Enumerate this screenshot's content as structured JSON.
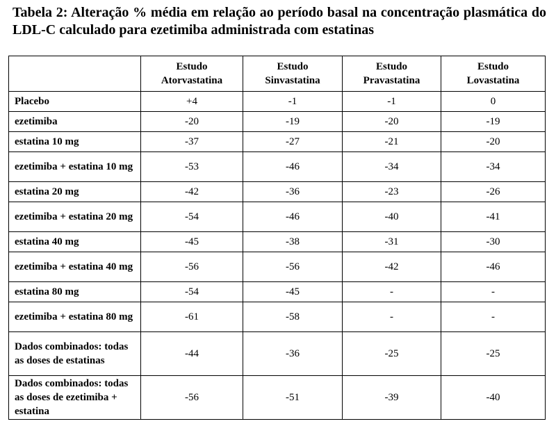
{
  "caption": "Tabela 2: Alteração % média em relação ao período basal na concentração plasmática do LDL-C calculado para ezetimiba administrada com estatinas",
  "columns": [
    {
      "line1": "Estudo",
      "line2": "Atorvastatina"
    },
    {
      "line1": "Estudo",
      "line2": "Sinvastatina"
    },
    {
      "line1": "Estudo",
      "line2": "Pravastatina"
    },
    {
      "line1": "Estudo",
      "line2": "Lovastatina"
    }
  ],
  "rows": [
    {
      "label": "Placebo",
      "values": [
        "+4",
        "-1",
        "-1",
        "0"
      ]
    },
    {
      "label": "ezetimiba",
      "values": [
        "-20",
        "-19",
        "-20",
        "-19"
      ]
    },
    {
      "label": "estatina 10 mg",
      "values": [
        "-37",
        "-27",
        "-21",
        "-20"
      ]
    },
    {
      "label": "ezetimiba + estatina 10 mg",
      "values": [
        "-53",
        "-46",
        "-34",
        "-34"
      ]
    },
    {
      "label": "estatina 20 mg",
      "values": [
        "-42",
        "-36",
        "-23",
        "-26"
      ]
    },
    {
      "label": "ezetimiba + estatina 20 mg",
      "values": [
        "-54",
        "-46",
        "-40",
        "-41"
      ]
    },
    {
      "label": "estatina 40 mg",
      "values": [
        "-45",
        "-38",
        "-31",
        "-30"
      ]
    },
    {
      "label": "ezetimiba + estatina 40 mg",
      "values": [
        "-56",
        "-56",
        "-42",
        "-46"
      ]
    },
    {
      "label": "estatina 80 mg",
      "values": [
        "-54",
        "-45",
        "-",
        "-"
      ]
    },
    {
      "label": "ezetimiba + estatina 80 mg",
      "values": [
        "-61",
        "-58",
        "-",
        "-"
      ]
    },
    {
      "label": "Dados combinados: todas as doses de estatinas",
      "values": [
        "-44",
        "-36",
        "-25",
        "-25"
      ]
    },
    {
      "label": "Dados combinados: todas as doses de ezetimiba + estatina",
      "values": [
        "-56",
        "-51",
        "-39",
        "-40"
      ]
    }
  ]
}
